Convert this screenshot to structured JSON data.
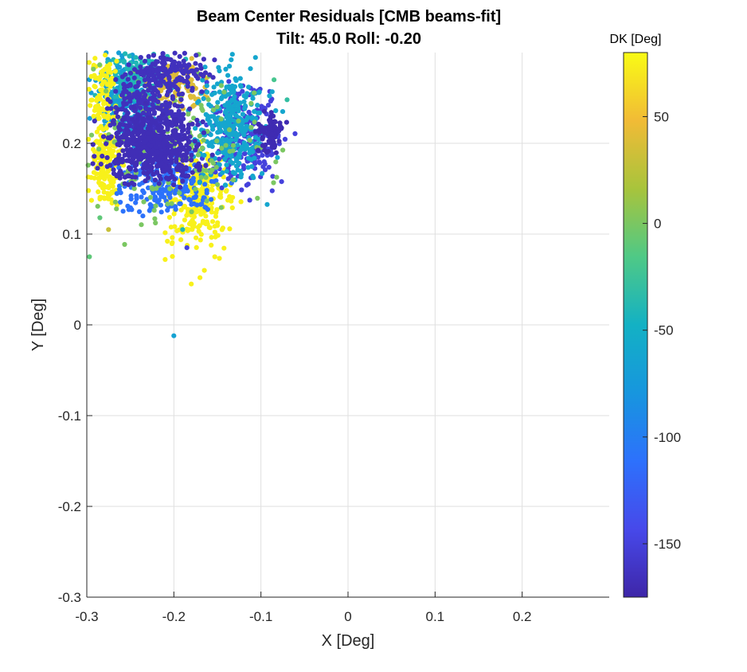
{
  "chart_data": {
    "type": "scatter",
    "title": "Beam Center Residuals [CMB beams-fit]",
    "subtitle": "Tilt: 45.0  Roll: -0.20",
    "xlabel": "X [Deg]",
    "ylabel": "Y [Deg]",
    "xlim": [
      -0.3,
      0.3
    ],
    "ylim": [
      -0.3,
      0.3
    ],
    "xticks": [
      -0.3,
      -0.2,
      -0.1,
      0,
      0.1,
      0.2
    ],
    "xtick_labels": [
      "-0.3",
      "-0.2",
      "-0.1",
      "0",
      "0.1",
      "0.2"
    ],
    "yticks": [
      -0.3,
      -0.2,
      -0.1,
      0,
      0.1,
      0.2
    ],
    "ytick_labels": [
      "-0.3",
      "-0.2",
      "-0.1",
      "0",
      "0.1",
      "0.2"
    ],
    "grid": true,
    "colorbar": {
      "label": "DK [Deg]",
      "clim": [
        -175,
        80
      ],
      "ticks": [
        50,
        0,
        -50,
        -100,
        -150
      ],
      "tick_labels": [
        "50",
        "0",
        "-50",
        "-100",
        "-150"
      ],
      "colormap": "parula"
    },
    "clusters": [
      {
        "dk": -70,
        "cx": -0.255,
        "cy": 0.25,
        "sx": 0.022,
        "sy": 0.03,
        "n": 260
      },
      {
        "dk": -40,
        "cx": -0.24,
        "cy": 0.27,
        "sx": 0.03,
        "sy": 0.02,
        "n": 140
      },
      {
        "dk": 40,
        "cx": -0.195,
        "cy": 0.265,
        "sx": 0.02,
        "sy": 0.02,
        "n": 120
      },
      {
        "dk": 75,
        "cx": -0.28,
        "cy": 0.255,
        "sx": 0.012,
        "sy": 0.03,
        "n": 90
      },
      {
        "dk": 75,
        "cx": -0.17,
        "cy": 0.14,
        "sx": 0.025,
        "sy": 0.035,
        "n": 260
      },
      {
        "dk": 75,
        "cx": -0.28,
        "cy": 0.175,
        "sx": 0.014,
        "sy": 0.03,
        "n": 160
      },
      {
        "dk": -150,
        "cx": -0.12,
        "cy": 0.21,
        "sx": 0.03,
        "sy": 0.04,
        "n": 230
      },
      {
        "dk": -110,
        "cx": -0.21,
        "cy": 0.155,
        "sx": 0.04,
        "sy": 0.022,
        "n": 220
      },
      {
        "dk": -60,
        "cx": -0.135,
        "cy": 0.22,
        "sx": 0.025,
        "sy": 0.04,
        "n": 320
      },
      {
        "dk": 0,
        "cx": -0.2,
        "cy": 0.2,
        "sx": 0.07,
        "sy": 0.06,
        "n": 170
      },
      {
        "dk": -165,
        "cx": -0.225,
        "cy": 0.24,
        "sx": 0.03,
        "sy": 0.03,
        "n": 240
      },
      {
        "dk": -168,
        "cx": -0.225,
        "cy": 0.195,
        "sx": 0.035,
        "sy": 0.025,
        "n": 520
      },
      {
        "dk": -165,
        "cx": -0.205,
        "cy": 0.28,
        "sx": 0.03,
        "sy": 0.015,
        "n": 160
      },
      {
        "dk": -170,
        "cx": -0.09,
        "cy": 0.21,
        "sx": 0.01,
        "sy": 0.015,
        "n": 90
      }
    ],
    "outliers": [
      {
        "x": -0.2,
        "y": -0.012,
        "dk": -65
      },
      {
        "x": -0.297,
        "y": 0.075,
        "dk": -10
      },
      {
        "x": -0.275,
        "y": 0.105,
        "dk": 30
      },
      {
        "x": -0.285,
        "y": 0.118,
        "dk": -10
      },
      {
        "x": -0.18,
        "y": 0.045,
        "dk": 75
      },
      {
        "x": -0.17,
        "y": 0.052,
        "dk": 75
      },
      {
        "x": -0.165,
        "y": 0.06,
        "dk": 75
      },
      {
        "x": -0.21,
        "y": 0.072,
        "dk": 75
      },
      {
        "x": -0.185,
        "y": 0.085,
        "dk": -150
      },
      {
        "x": -0.153,
        "y": 0.075,
        "dk": 75
      },
      {
        "x": -0.07,
        "y": 0.248,
        "dk": -30
      },
      {
        "x": -0.075,
        "y": 0.235,
        "dk": -60
      },
      {
        "x": -0.085,
        "y": 0.27,
        "dk": -20
      },
      {
        "x": -0.19,
        "y": 0.105,
        "dk": -40
      }
    ]
  }
}
